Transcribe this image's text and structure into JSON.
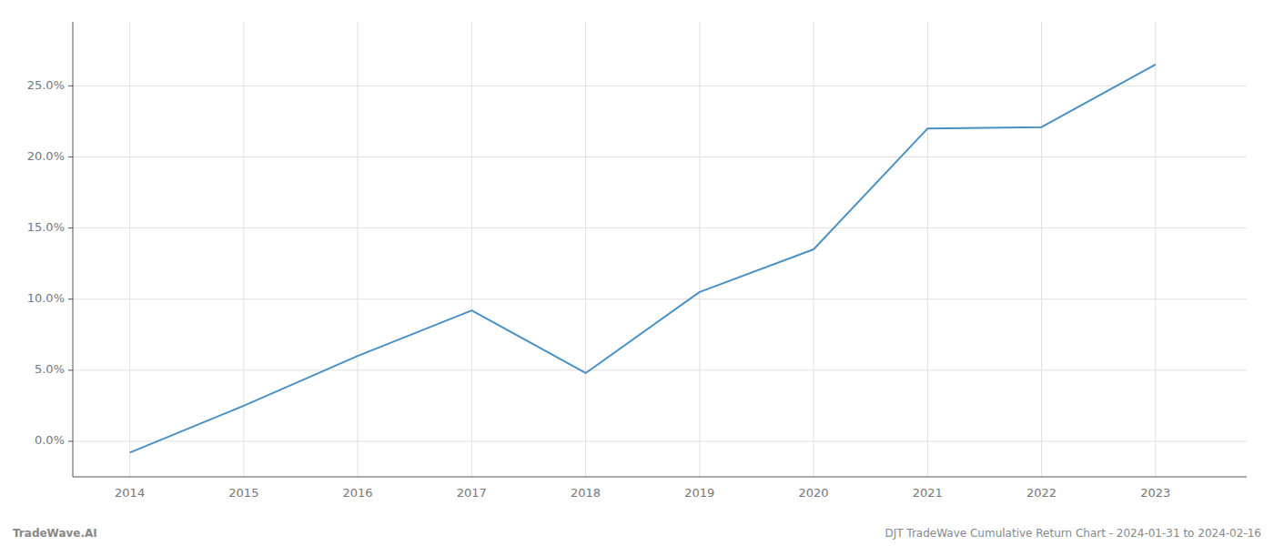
{
  "chart_data": {
    "type": "line",
    "x": [
      2014,
      2015,
      2016,
      2017,
      2018,
      2019,
      2020,
      2021,
      2022,
      2023
    ],
    "values": [
      -0.008,
      0.025,
      0.06,
      0.092,
      0.048,
      0.105,
      0.135,
      0.22,
      0.221,
      0.265
    ],
    "color": "#4a90c4",
    "xlim": [
      2013.5,
      2023.8
    ],
    "ylim": [
      -0.025,
      0.295
    ],
    "xticks": [
      2014,
      2015,
      2016,
      2017,
      2018,
      2019,
      2020,
      2021,
      2022,
      2023
    ],
    "yticks": [
      {
        "value": 0.0,
        "label": "0.0%"
      },
      {
        "value": 0.05,
        "label": "5.0%"
      },
      {
        "value": 0.1,
        "label": "10.0%"
      },
      {
        "value": 0.15,
        "label": "15.0%"
      },
      {
        "value": 0.2,
        "label": "20.0%"
      },
      {
        "value": 0.25,
        "label": "25.0%"
      }
    ],
    "grid": true,
    "annotations": [
      "TradeWave.AI",
      "DJT TradeWave Cumulative Return Chart - 2024-01-31 to 2024-02-16"
    ]
  }
}
